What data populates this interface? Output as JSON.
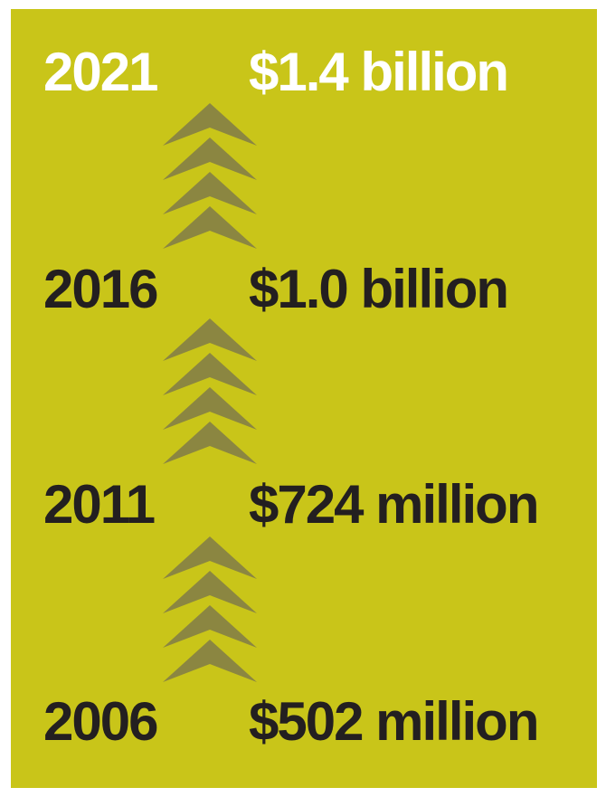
{
  "colors": {
    "background": "#c9c519",
    "text_dark": "#231f20",
    "text_highlight": "#ffffff",
    "arrow": "#8b8641"
  },
  "rows": [
    {
      "year": "2021",
      "amount": "$1.4 billion"
    },
    {
      "year": "2016",
      "amount": "$1.0 billion"
    },
    {
      "year": "2011",
      "amount": "$724 million"
    },
    {
      "year": "2006",
      "amount": "$502 million"
    }
  ],
  "arrow_icon": "chevron-up-icon"
}
